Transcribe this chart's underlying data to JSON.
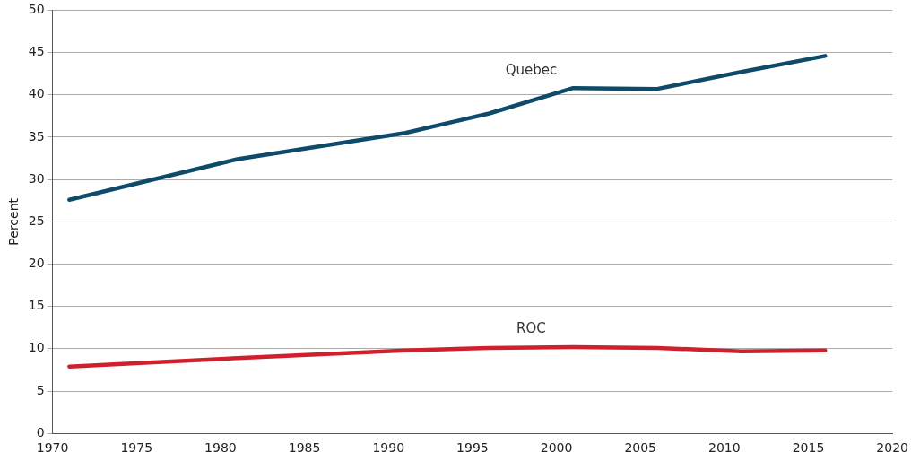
{
  "chart_data": {
    "type": "line",
    "ylabel": "Percent",
    "x": [
      1971,
      1981,
      1991,
      1996,
      2001,
      2006,
      2011,
      2016
    ],
    "series": [
      {
        "name": "Quebec",
        "color": "#0e4a6a",
        "values": [
          27.6,
          32.4,
          35.5,
          37.8,
          40.8,
          40.7,
          42.7,
          44.6
        ]
      },
      {
        "name": "ROC",
        "color": "#d0202e",
        "values": [
          7.9,
          8.9,
          9.8,
          10.1,
          10.2,
          10.1,
          9.7,
          9.8
        ]
      }
    ],
    "xlim": [
      1970,
      2020
    ],
    "xticks": [
      1970,
      1975,
      1980,
      1985,
      1990,
      1995,
      2000,
      2005,
      2010,
      2015,
      2020
    ],
    "ylim": [
      0,
      50
    ],
    "yticks": [
      0,
      5,
      10,
      15,
      20,
      25,
      30,
      35,
      40,
      45,
      50
    ],
    "grid": "y",
    "legend": false,
    "marker": "none",
    "line_style": "solid"
  }
}
